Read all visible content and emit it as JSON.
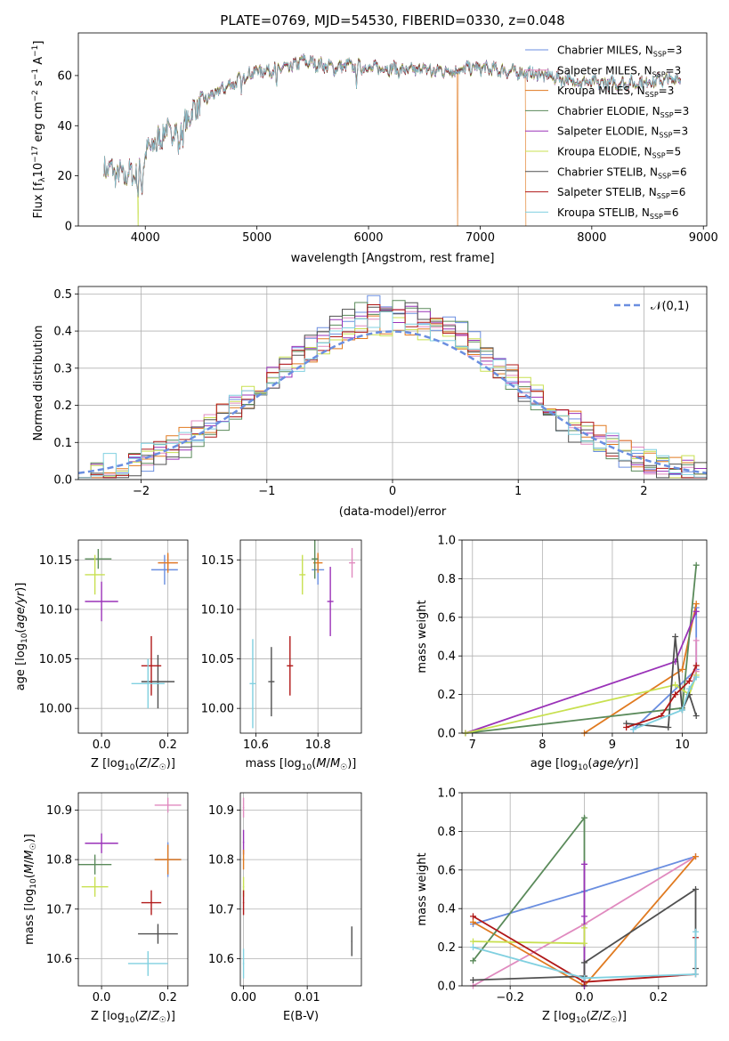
{
  "colors": {
    "Chabrier MILES": "#6a8ee0",
    "Salpeter MILES": "#e08abf",
    "Kroupa MILES": "#e07a20",
    "Chabrier ELODIE": "#5a8a5a",
    "Salpeter ELODIE": "#9a32b8",
    "Kroupa ELODIE": "#c8e050",
    "Chabrier STELIB": "#505050",
    "Salpeter STELIB": "#b01818",
    "Kroupa STELIB": "#80d0e0",
    "normal": "#6a8ee0",
    "grid": "#b0b0b0"
  },
  "chart_data": [
    {
      "id": "spectrum",
      "type": "line",
      "title": "PLATE=0769, MJD=54530, FIBERID=0330, z=0.048",
      "xlabel": "wavelength [Angstrom, rest frame]",
      "ylabel": "Flux [f_λ 10^-17 erg cm^-2 s^-1 A^-1]",
      "xlim": [
        3400,
        9030
      ],
      "ylim": [
        0,
        77
      ],
      "xticks": [
        4000,
        5000,
        6000,
        7000,
        8000,
        9000
      ],
      "yticks": [
        0,
        20,
        40,
        60
      ],
      "grid": false,
      "legend_placement": "top-right",
      "legend": [
        "Chabrier MILES, N_SSP=3",
        "Salpeter MILES, N_SSP=3",
        "Kroupa MILES, N_SSP=3",
        "Chabrier ELODIE, N_SSP=3",
        "Salpeter ELODIE, N_SSP=3",
        "Kroupa ELODIE, N_SSP=5",
        "Chabrier STELIB, N_SSP=6",
        "Salpeter STELIB, N_SSP=6",
        "Kroupa STELIB, N_SSP=6"
      ],
      "continuum": [
        [
          3630,
          24
        ],
        [
          3700,
          22
        ],
        [
          3800,
          20
        ],
        [
          3900,
          21
        ],
        [
          3950,
          22
        ],
        [
          4000,
          28
        ],
        [
          4100,
          35
        ],
        [
          4200,
          38
        ],
        [
          4300,
          37
        ],
        [
          4400,
          44
        ],
        [
          4500,
          50
        ],
        [
          4600,
          52
        ],
        [
          4700,
          55
        ],
        [
          4800,
          57
        ],
        [
          4900,
          60
        ],
        [
          5000,
          62
        ],
        [
          5100,
          62
        ],
        [
          5200,
          63
        ],
        [
          5300,
          63
        ],
        [
          5400,
          66
        ],
        [
          5500,
          65
        ],
        [
          5600,
          64
        ],
        [
          5700,
          63
        ],
        [
          5800,
          64
        ],
        [
          5900,
          64
        ],
        [
          6000,
          63
        ],
        [
          6100,
          63
        ],
        [
          6200,
          63
        ],
        [
          6300,
          62
        ],
        [
          6400,
          62
        ],
        [
          6500,
          63
        ],
        [
          6600,
          62
        ],
        [
          6700,
          62
        ],
        [
          6800,
          62
        ],
        [
          6900,
          63
        ],
        [
          7000,
          63
        ],
        [
          7200,
          62
        ],
        [
          7400,
          61
        ],
        [
          7600,
          60
        ],
        [
          7800,
          58
        ],
        [
          8000,
          57
        ],
        [
          8200,
          57
        ],
        [
          8400,
          57
        ],
        [
          8600,
          58
        ],
        [
          8800,
          59
        ]
      ],
      "absorption_dips": [
        [
          3935,
          10
        ],
        [
          3970,
          9
        ],
        [
          4102,
          6
        ],
        [
          4300,
          6
        ],
        [
          4340,
          5
        ],
        [
          4861,
          4
        ],
        [
          5175,
          8
        ],
        [
          5890,
          8
        ],
        [
          6563,
          3
        ]
      ],
      "drop_outs": [
        {
          "series": "Kroupa ELODIE",
          "x": 3935
        },
        {
          "series": "Kroupa MILES",
          "x": 6800
        },
        {
          "series": "Kroupa MILES",
          "x": 7410
        }
      ]
    },
    {
      "id": "residuals",
      "type": "histogram",
      "xlabel": "(data-model)/error",
      "ylabel": "Normed distribution",
      "xlim": [
        -2.5,
        2.5
      ],
      "ylim": [
        0,
        0.52
      ],
      "xticks": [
        -2,
        -1,
        0,
        1,
        2
      ],
      "yticks": [
        0.0,
        0.1,
        0.2,
        0.3,
        0.4,
        0.5
      ],
      "grid": true,
      "legend_placement": "top-right",
      "legend": [
        "𝒩(0,1)"
      ],
      "bin_width": 0.1
    },
    {
      "id": "age_vs_z",
      "type": "scatter",
      "xlabel": "Z [log10(Z/Z☉)]",
      "ylabel": "age [log10(age/yr)]",
      "xlim": [
        -0.07,
        0.26
      ],
      "ylim": [
        9.975,
        10.17
      ],
      "xticks": [
        0.0,
        0.2
      ],
      "yticks": [
        10.0,
        10.05,
        10.1,
        10.15
      ],
      "grid": true,
      "points": [
        {
          "series": "Chabrier MILES",
          "x": 0.19,
          "y": 10.14,
          "xerr": 0.04,
          "yerr": 0.015
        },
        {
          "series": "Salpeter MILES",
          "x": 0.2,
          "y": 10.147,
          "xerr": 0.03,
          "yerr": 0.008
        },
        {
          "series": "Kroupa MILES",
          "x": 0.2,
          "y": 10.147,
          "xerr": 0.03,
          "yerr": 0.01
        },
        {
          "series": "Chabrier ELODIE",
          "x": -0.01,
          "y": 10.151,
          "xerr": 0.04,
          "yerr": 0.01
        },
        {
          "series": "Salpeter ELODIE",
          "x": 0.0,
          "y": 10.108,
          "xerr": 0.05,
          "yerr": 0.02
        },
        {
          "series": "Kroupa ELODIE",
          "x": -0.02,
          "y": 10.135,
          "xerr": 0.03,
          "yerr": 0.02
        },
        {
          "series": "Chabrier STELIB",
          "x": 0.17,
          "y": 10.027,
          "xerr": 0.05,
          "yerr": 0.027
        },
        {
          "series": "Salpeter STELIB",
          "x": 0.15,
          "y": 10.043,
          "xerr": 0.03,
          "yerr": 0.03
        },
        {
          "series": "Kroupa STELIB",
          "x": 0.14,
          "y": 10.025,
          "xerr": 0.05,
          "yerr": 0.025
        }
      ]
    },
    {
      "id": "age_vs_mass",
      "type": "scatter",
      "xlabel": "mass [log10(M/M☉)]",
      "ylabel": "",
      "xlim": [
        10.55,
        10.94
      ],
      "ylim": [
        9.975,
        10.17
      ],
      "xticks": [
        10.6,
        10.8
      ],
      "yticks": [
        10.0,
        10.05,
        10.1,
        10.15
      ],
      "grid": true,
      "points": [
        {
          "series": "Chabrier MILES",
          "x": 10.8,
          "y": 10.14,
          "xerr": 0.02,
          "yerr": 0.015
        },
        {
          "series": "Salpeter MILES",
          "x": 10.91,
          "y": 10.147,
          "xerr": 0.01,
          "yerr": 0.015
        },
        {
          "series": "Kroupa MILES",
          "x": 10.8,
          "y": 10.147,
          "xerr": 0.015,
          "yerr": 0.01
        },
        {
          "series": "Chabrier ELODIE",
          "x": 10.79,
          "y": 10.151,
          "xerr": 0.01,
          "yerr": 0.02
        },
        {
          "series": "Salpeter ELODIE",
          "x": 10.84,
          "y": 10.108,
          "xerr": 0.01,
          "yerr": 0.035
        },
        {
          "series": "Kroupa ELODIE",
          "x": 10.75,
          "y": 10.135,
          "xerr": 0.01,
          "yerr": 0.02
        },
        {
          "series": "Chabrier STELIB",
          "x": 10.65,
          "y": 10.027,
          "xerr": 0.01,
          "yerr": 0.035
        },
        {
          "series": "Salpeter STELIB",
          "x": 10.71,
          "y": 10.043,
          "xerr": 0.01,
          "yerr": 0.03
        },
        {
          "series": "Kroupa STELIB",
          "x": 10.59,
          "y": 10.025,
          "xerr": 0.01,
          "yerr": 0.045
        }
      ]
    },
    {
      "id": "weight_vs_age",
      "type": "line",
      "xlabel": "age [log10(age/yr)]",
      "ylabel": "mass weight",
      "xlim": [
        6.85,
        10.35
      ],
      "ylim": [
        0,
        1.0
      ],
      "xticks": [
        7,
        8,
        9,
        10
      ],
      "yticks": [
        0.0,
        0.2,
        0.4,
        0.6,
        0.8,
        1.0
      ],
      "grid": true,
      "series": [
        {
          "series": "Chabrier MILES",
          "x": [
            9.3,
            10.2,
            10.2
          ],
          "y": [
            0.02,
            0.33,
            0.65
          ]
        },
        {
          "series": "Salpeter MILES",
          "x": [
            10.1,
            10.2,
            10.2
          ],
          "y": [
            0.2,
            0.32,
            0.48
          ]
        },
        {
          "series": "Kroupa MILES",
          "x": [
            8.6,
            10.0,
            10.2
          ],
          "y": [
            0.0,
            0.33,
            0.67
          ]
        },
        {
          "series": "Chabrier ELODIE",
          "x": [
            6.9,
            10.0,
            10.2
          ],
          "y": [
            0.0,
            0.13,
            0.87
          ]
        },
        {
          "series": "Salpeter ELODIE",
          "x": [
            6.9,
            9.9,
            10.2
          ],
          "y": [
            0.0,
            0.37,
            0.63
          ]
        },
        {
          "series": "Kroupa ELODIE",
          "x": [
            6.9,
            9.9,
            10.1,
            10.2
          ],
          "y": [
            0.0,
            0.25,
            0.2,
            0.3
          ]
        },
        {
          "series": "Chabrier STELIB",
          "x": [
            9.2,
            9.8,
            9.9,
            10.0,
            10.1,
            10.2
          ],
          "y": [
            0.05,
            0.03,
            0.5,
            0.12,
            0.2,
            0.09
          ]
        },
        {
          "series": "Salpeter STELIB",
          "x": [
            9.2,
            9.7,
            9.9,
            10.1,
            10.2
          ],
          "y": [
            0.03,
            0.09,
            0.2,
            0.27,
            0.35
          ]
        },
        {
          "series": "Kroupa STELIB",
          "x": [
            9.3,
            10.0,
            10.1,
            10.2
          ],
          "y": [
            0.02,
            0.12,
            0.23,
            0.29
          ]
        }
      ]
    },
    {
      "id": "mass_vs_z",
      "type": "scatter",
      "xlabel": "Z [log10(Z/Z☉)]",
      "ylabel": "mass [log10(M/M☉)]",
      "xlim": [
        -0.07,
        0.26
      ],
      "ylim": [
        10.545,
        10.935
      ],
      "xticks": [
        0.0,
        0.2
      ],
      "yticks": [
        10.6,
        10.7,
        10.8,
        10.9
      ],
      "grid": true,
      "points": [
        {
          "series": "Chabrier MILES",
          "x": 0.2,
          "y": 10.8,
          "xerr": 0.04,
          "yerr": 0.035
        },
        {
          "series": "Salpeter MILES",
          "x": 0.2,
          "y": 10.91,
          "xerr": 0.04,
          "yerr": 0.015
        },
        {
          "series": "Kroupa MILES",
          "x": 0.2,
          "y": 10.8,
          "xerr": 0.04,
          "yerr": 0.03
        },
        {
          "series": "Chabrier ELODIE",
          "x": -0.02,
          "y": 10.79,
          "xerr": 0.05,
          "yerr": 0.02
        },
        {
          "series": "Salpeter ELODIE",
          "x": 0.0,
          "y": 10.833,
          "xerr": 0.05,
          "yerr": 0.02
        },
        {
          "series": "Kroupa ELODIE",
          "x": -0.02,
          "y": 10.745,
          "xerr": 0.04,
          "yerr": 0.02
        },
        {
          "series": "Chabrier STELIB",
          "x": 0.17,
          "y": 10.65,
          "xerr": 0.06,
          "yerr": 0.02
        },
        {
          "series": "Salpeter STELIB",
          "x": 0.15,
          "y": 10.713,
          "xerr": 0.03,
          "yerr": 0.025
        },
        {
          "series": "Kroupa STELIB",
          "x": 0.14,
          "y": 10.59,
          "xerr": 0.06,
          "yerr": 0.025
        }
      ]
    },
    {
      "id": "mass_vs_ebv",
      "type": "scatter",
      "xlabel": "E(B-V)",
      "ylabel": "",
      "xlim": [
        -0.0005,
        0.0185
      ],
      "ylim": [
        10.545,
        10.935
      ],
      "xticks": [
        0.0,
        0.01
      ],
      "yticks": [
        10.6,
        10.7,
        10.8,
        10.9
      ],
      "grid": true,
      "points": [
        {
          "series": "Salpeter MILES",
          "x": 0.0,
          "y": 10.905,
          "xerr": 0.0001,
          "yerr": 0.02
        },
        {
          "series": "Salpeter ELODIE",
          "x": 0.0,
          "y": 10.835,
          "xerr": 0.0001,
          "yerr": 0.025
        },
        {
          "series": "Kroupa MILES",
          "x": 0.0,
          "y": 10.8,
          "xerr": 0.0001,
          "yerr": 0.02
        },
        {
          "series": "Kroupa ELODIE",
          "x": 0.0,
          "y": 10.745,
          "xerr": 0.0001,
          "yerr": 0.02
        },
        {
          "series": "Salpeter STELIB",
          "x": 0.0,
          "y": 10.713,
          "xerr": 0.0001,
          "yerr": 0.025
        },
        {
          "series": "Kroupa STELIB",
          "x": 0.0,
          "y": 10.59,
          "xerr": 0.0001,
          "yerr": 0.03
        },
        {
          "series": "Chabrier STELIB",
          "x": 0.017,
          "y": 10.635,
          "xerr": 0.0001,
          "yerr": 0.03
        }
      ]
    },
    {
      "id": "weight_vs_z",
      "type": "line",
      "xlabel": "Z [log10(Z/Z☉)]",
      "ylabel": "mass weight",
      "xlim": [
        -0.33,
        0.33
      ],
      "ylim": [
        0,
        1.0
      ],
      "xticks": [
        -0.2,
        0.0,
        0.2
      ],
      "yticks": [
        0.0,
        0.2,
        0.4,
        0.6,
        0.8,
        1.0
      ],
      "grid": true,
      "series": [
        {
          "series": "Chabrier MILES",
          "x": [
            -0.3,
            0.0,
            0.3
          ],
          "y": [
            0.32,
            0.49,
            0.67
          ]
        },
        {
          "series": "Salpeter MILES",
          "x": [
            -0.3,
            0.0,
            0.3
          ],
          "y": [
            0.0,
            0.32,
            0.67
          ]
        },
        {
          "series": "Kroupa MILES",
          "x": [
            -0.3,
            0.0,
            0.3
          ],
          "y": [
            0.33,
            0.0,
            0.67
          ]
        },
        {
          "series": "Chabrier ELODIE",
          "x": [
            -0.3,
            0.0,
            0.0
          ],
          "y": [
            0.13,
            0.87,
            0.0
          ]
        },
        {
          "series": "Salpeter ELODIE",
          "x": [
            0.0,
            0.0,
            0.0
          ],
          "y": [
            0.36,
            0.63,
            0.0
          ]
        },
        {
          "series": "Kroupa ELODIE",
          "x": [
            -0.3,
            0.0,
            0.0
          ],
          "y": [
            0.23,
            0.22,
            0.3
          ]
        },
        {
          "series": "Chabrier STELIB",
          "x": [
            -0.3,
            0.0,
            0.0,
            0.3,
            0.3
          ],
          "y": [
            0.03,
            0.05,
            0.12,
            0.5,
            0.09
          ]
        },
        {
          "series": "Salpeter STELIB",
          "x": [
            -0.3,
            0.0,
            0.3,
            0.3
          ],
          "y": [
            0.36,
            0.02,
            0.06,
            0.25
          ]
        },
        {
          "series": "Kroupa STELIB",
          "x": [
            -0.3,
            0.0,
            0.3,
            0.3
          ],
          "y": [
            0.2,
            0.04,
            0.06,
            0.28
          ]
        }
      ]
    }
  ]
}
